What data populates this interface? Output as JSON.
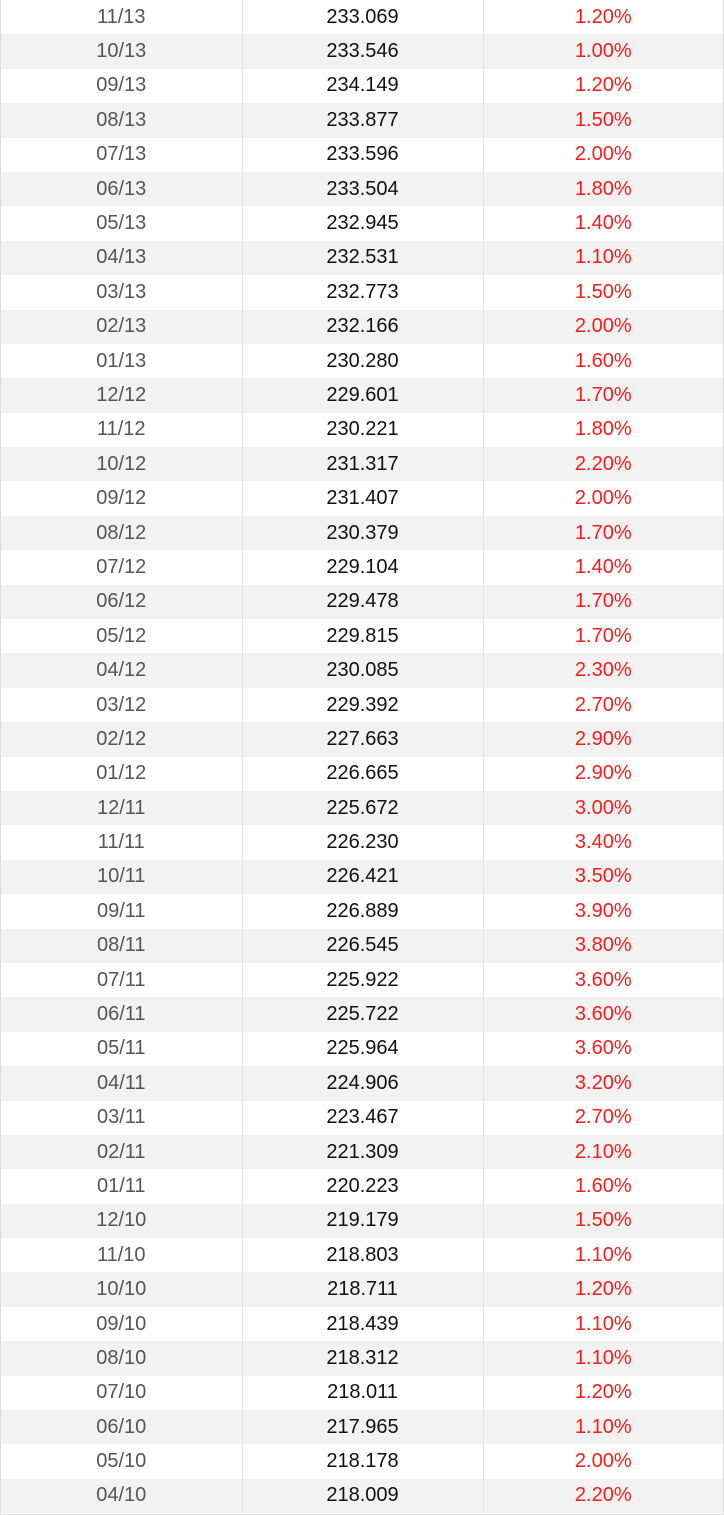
{
  "table": {
    "rows": [
      {
        "date": "11/13",
        "index": "233.069",
        "rate": "1.20%"
      },
      {
        "date": "10/13",
        "index": "233.546",
        "rate": "1.00%"
      },
      {
        "date": "09/13",
        "index": "234.149",
        "rate": "1.20%"
      },
      {
        "date": "08/13",
        "index": "233.877",
        "rate": "1.50%"
      },
      {
        "date": "07/13",
        "index": "233.596",
        "rate": "2.00%"
      },
      {
        "date": "06/13",
        "index": "233.504",
        "rate": "1.80%"
      },
      {
        "date": "05/13",
        "index": "232.945",
        "rate": "1.40%"
      },
      {
        "date": "04/13",
        "index": "232.531",
        "rate": "1.10%"
      },
      {
        "date": "03/13",
        "index": "232.773",
        "rate": "1.50%"
      },
      {
        "date": "02/13",
        "index": "232.166",
        "rate": "2.00%"
      },
      {
        "date": "01/13",
        "index": "230.280",
        "rate": "1.60%"
      },
      {
        "date": "12/12",
        "index": "229.601",
        "rate": "1.70%"
      },
      {
        "date": "11/12",
        "index": "230.221",
        "rate": "1.80%"
      },
      {
        "date": "10/12",
        "index": "231.317",
        "rate": "2.20%"
      },
      {
        "date": "09/12",
        "index": "231.407",
        "rate": "2.00%"
      },
      {
        "date": "08/12",
        "index": "230.379",
        "rate": "1.70%"
      },
      {
        "date": "07/12",
        "index": "229.104",
        "rate": "1.40%"
      },
      {
        "date": "06/12",
        "index": "229.478",
        "rate": "1.70%"
      },
      {
        "date": "05/12",
        "index": "229.815",
        "rate": "1.70%"
      },
      {
        "date": "04/12",
        "index": "230.085",
        "rate": "2.30%"
      },
      {
        "date": "03/12",
        "index": "229.392",
        "rate": "2.70%"
      },
      {
        "date": "02/12",
        "index": "227.663",
        "rate": "2.90%"
      },
      {
        "date": "01/12",
        "index": "226.665",
        "rate": "2.90%"
      },
      {
        "date": "12/11",
        "index": "225.672",
        "rate": "3.00%"
      },
      {
        "date": "11/11",
        "index": "226.230",
        "rate": "3.40%"
      },
      {
        "date": "10/11",
        "index": "226.421",
        "rate": "3.50%"
      },
      {
        "date": "09/11",
        "index": "226.889",
        "rate": "3.90%"
      },
      {
        "date": "08/11",
        "index": "226.545",
        "rate": "3.80%"
      },
      {
        "date": "07/11",
        "index": "225.922",
        "rate": "3.60%"
      },
      {
        "date": "06/11",
        "index": "225.722",
        "rate": "3.60%"
      },
      {
        "date": "05/11",
        "index": "225.964",
        "rate": "3.60%"
      },
      {
        "date": "04/11",
        "index": "224.906",
        "rate": "3.20%"
      },
      {
        "date": "03/11",
        "index": "223.467",
        "rate": "2.70%"
      },
      {
        "date": "02/11",
        "index": "221.309",
        "rate": "2.10%"
      },
      {
        "date": "01/11",
        "index": "220.223",
        "rate": "1.60%"
      },
      {
        "date": "12/10",
        "index": "219.179",
        "rate": "1.50%"
      },
      {
        "date": "11/10",
        "index": "218.803",
        "rate": "1.10%"
      },
      {
        "date": "10/10",
        "index": "218.711",
        "rate": "1.20%"
      },
      {
        "date": "09/10",
        "index": "218.439",
        "rate": "1.10%"
      },
      {
        "date": "08/10",
        "index": "218.312",
        "rate": "1.10%"
      },
      {
        "date": "07/10",
        "index": "218.011",
        "rate": "1.20%"
      },
      {
        "date": "06/10",
        "index": "217.965",
        "rate": "1.10%"
      },
      {
        "date": "05/10",
        "index": "218.178",
        "rate": "2.00%"
      },
      {
        "date": "04/10",
        "index": "218.009",
        "rate": "2.20%"
      }
    ]
  },
  "colors": {
    "rate_text": "#ff1a1a",
    "date_text": "#555555",
    "index_text": "#111111",
    "stripe": "#f2f2f2"
  }
}
